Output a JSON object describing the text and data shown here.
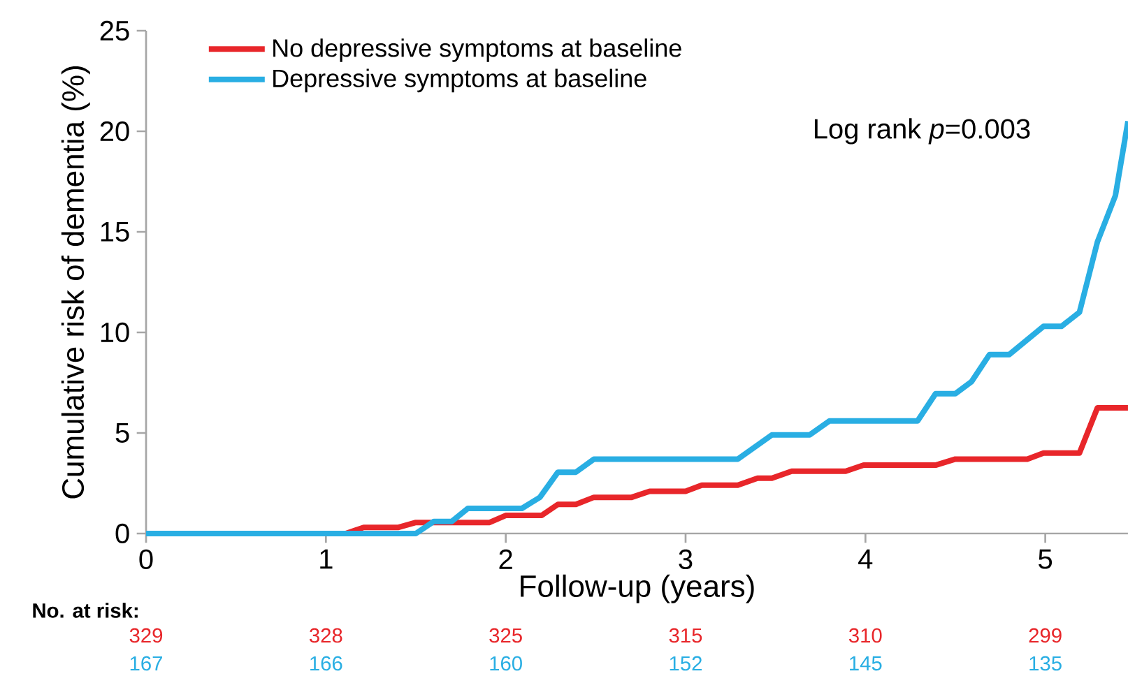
{
  "chart_data": {
    "type": "line",
    "xlabel": "Follow-up (years)",
    "ylabel": "Cumulative risk of dementia (%)",
    "xlim": [
      0,
      5.46
    ],
    "ylim": [
      0,
      25
    ],
    "xticks": [
      0,
      1,
      2,
      3,
      4,
      5
    ],
    "yticks": [
      0,
      5,
      10,
      15,
      20,
      25
    ],
    "legend": "top left",
    "grid": false,
    "line_style": "solid",
    "series": [
      {
        "name": "No depressive symptoms at baseline",
        "color": "#e8262a",
        "x": [
          0,
          1.11,
          1.21,
          1.4,
          1.5,
          1.91,
          2.0,
          2.2,
          2.29,
          2.39,
          2.49,
          2.7,
          2.8,
          3.0,
          3.09,
          3.29,
          3.4,
          3.48,
          3.59,
          3.89,
          3.99,
          4.39,
          4.5,
          4.9,
          4.99,
          5.19,
          5.29,
          5.46
        ],
        "values": [
          0,
          0,
          0.3,
          0.3,
          0.55,
          0.55,
          0.9,
          0.9,
          1.45,
          1.45,
          1.8,
          1.8,
          2.1,
          2.1,
          2.4,
          2.4,
          2.75,
          2.75,
          3.1,
          3.1,
          3.4,
          3.4,
          3.7,
          3.7,
          4.0,
          4.0,
          6.25,
          6.25
        ]
      },
      {
        "name": "Depressive symptoms at baseline",
        "color": "#29aee3",
        "x": [
          0,
          1.5,
          1.6,
          1.7,
          1.79,
          2.09,
          2.19,
          2.29,
          2.39,
          2.49,
          3.29,
          3.48,
          3.69,
          3.8,
          4.29,
          4.39,
          4.5,
          4.59,
          4.69,
          4.8,
          4.99,
          5.09,
          5.19,
          5.29,
          5.39,
          5.46
        ],
        "values": [
          0,
          0,
          0.6,
          0.6,
          1.25,
          1.25,
          1.8,
          3.05,
          3.05,
          3.7,
          3.7,
          4.9,
          4.9,
          5.6,
          5.6,
          6.95,
          6.95,
          7.55,
          8.9,
          8.9,
          10.3,
          10.3,
          11.0,
          14.5,
          16.8,
          20.5
        ]
      }
    ],
    "annotations": [
      "Log rank *p*=0.003",
      "No. at risk:",
      "329",
      "328",
      "325",
      "315",
      "310",
      "299",
      "167",
      "166",
      "160",
      "152",
      "145",
      "135"
    ]
  }
}
